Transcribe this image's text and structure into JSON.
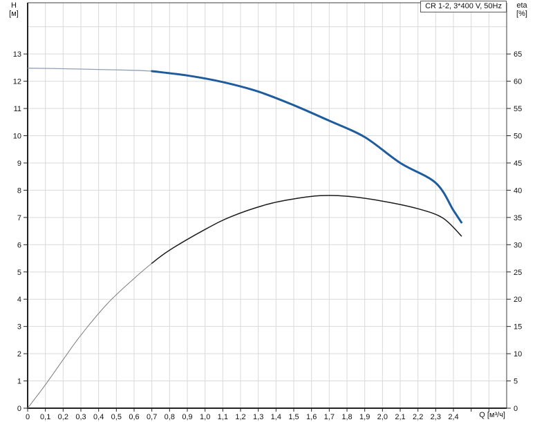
{
  "title_box": "CR 1-2, 3*400 V, 50Hz",
  "axes_labels": {
    "left_line1": "H",
    "left_line2": "[м]",
    "right_line1": "eta",
    "right_line2": "[%]",
    "x_label": "Q [м³/ч]"
  },
  "colors": {
    "head_bold": "#1f5c9e",
    "head_thin": "#8fa0b6",
    "eta_bold": "#1a1a1a",
    "eta_thin": "#7d7d7d",
    "grid": "#d9d9d9",
    "axis": "#3c3c3c",
    "text": "#111111"
  },
  "chart_data": {
    "type": "line",
    "title": "CR 1-2, 3*400 V, 50Hz",
    "grid": "on",
    "legend": "none",
    "x_axis": {
      "label": "Q [м³/ч]",
      "min": 0,
      "max": 2.7,
      "grid_step": 0.1,
      "tick_values": [
        0,
        0.1,
        0.2,
        0.3,
        0.4,
        0.5,
        0.6,
        0.7,
        0.8,
        0.9,
        1.0,
        1.1,
        1.2,
        1.3,
        1.4,
        1.5,
        1.6,
        1.7,
        1.8,
        1.9,
        2.0,
        2.1,
        2.2,
        2.3,
        2.4,
        2.5,
        2.6
      ],
      "tick_labels": [
        "0",
        "0,1",
        "0,2",
        "0,3",
        "0,4",
        "0,5",
        "0,6",
        "0,7",
        "0,8",
        "0,9",
        "1,0",
        "1,1",
        "1,2",
        "1,3",
        "1,4",
        "1,5",
        "1,6",
        "1,7",
        "1,8",
        "1,9",
        "2,0",
        "2,1",
        "2,2",
        "2,3",
        "2,4",
        "",
        ""
      ]
    },
    "y_left_axis": {
      "label": "H [м]",
      "min": 0,
      "max": 14.9,
      "tick_values": [
        0,
        1,
        2,
        3,
        4,
        5,
        6,
        7,
        8,
        9,
        10,
        11,
        12,
        13
      ],
      "tick_labels": [
        "0",
        "1",
        "2",
        "3",
        "4",
        "5",
        "6",
        "7",
        "8",
        "9",
        "10",
        "11",
        "12",
        "13"
      ]
    },
    "y_right_axis": {
      "label": "eta [%]",
      "min": 0,
      "max": 74.4,
      "tick_values": [
        0,
        5,
        10,
        15,
        20,
        25,
        30,
        35,
        40,
        45,
        50,
        55,
        60,
        65
      ],
      "tick_labels": [
        "0",
        "5",
        "10",
        "15",
        "20",
        "25",
        "30",
        "35",
        "40",
        "45",
        "50",
        "55",
        "60",
        "65"
      ]
    },
    "series": [
      {
        "id": "head_curve",
        "axis": "left",
        "units": {
          "x": "м³/ч",
          "y": "м"
        },
        "bold_from_x": 0.7,
        "points": [
          [
            0,
            12.48
          ],
          [
            0.2,
            12.46
          ],
          [
            0.4,
            12.43
          ],
          [
            0.6,
            12.4
          ],
          [
            0.7,
            12.37
          ],
          [
            0.9,
            12.21
          ],
          [
            1.1,
            11.97
          ],
          [
            1.3,
            11.62
          ],
          [
            1.5,
            11.12
          ],
          [
            1.7,
            10.55
          ],
          [
            1.9,
            9.95
          ],
          [
            2.1,
            9.0
          ],
          [
            2.3,
            8.27
          ],
          [
            2.4,
            7.26
          ],
          [
            2.445,
            6.82
          ]
        ]
      },
      {
        "id": "efficiency_curve",
        "axis": "right",
        "units": {
          "x": "м³/ч",
          "y": "%"
        },
        "bold_from_x": 0.7,
        "points": [
          [
            0,
            0
          ],
          [
            0.1,
            4.3
          ],
          [
            0.2,
            8.9
          ],
          [
            0.3,
            13.4
          ],
          [
            0.45,
            19.2
          ],
          [
            0.6,
            23.8
          ],
          [
            0.7,
            26.6
          ],
          [
            0.8,
            29.0
          ],
          [
            1.0,
            32.8
          ],
          [
            1.15,
            35.2
          ],
          [
            1.35,
            37.4
          ],
          [
            1.5,
            38.4
          ],
          [
            1.65,
            39.0
          ],
          [
            1.8,
            38.9
          ],
          [
            2.0,
            38.0
          ],
          [
            2.2,
            36.6
          ],
          [
            2.34,
            34.9
          ],
          [
            2.445,
            31.6
          ]
        ]
      }
    ]
  }
}
